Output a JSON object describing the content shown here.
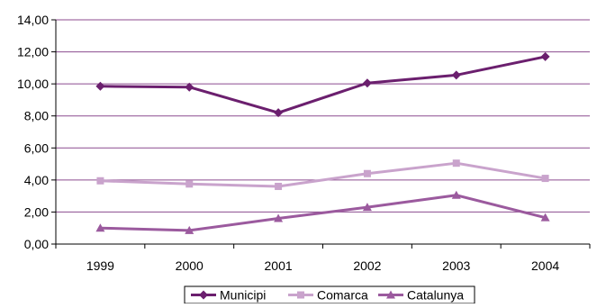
{
  "chart_data": {
    "type": "line",
    "x": [
      "1999",
      "2000",
      "2001",
      "2002",
      "2003",
      "2004"
    ],
    "y_ticks": [
      "0,00",
      "2,00",
      "4,00",
      "6,00",
      "8,00",
      "10,00",
      "12,00",
      "14,00"
    ],
    "ylim": [
      0,
      14
    ],
    "grid": true,
    "legend_position": "bottom",
    "series": [
      {
        "name": "Municipi",
        "marker": "diamond",
        "color": "#6b1f6e",
        "values": [
          9.85,
          9.8,
          8.2,
          10.05,
          10.55,
          11.7
        ]
      },
      {
        "name": "Comarca",
        "marker": "square",
        "color": "#c9a3cc",
        "values": [
          3.95,
          3.75,
          3.6,
          4.4,
          5.05,
          4.1
        ]
      },
      {
        "name": "Catalunya",
        "marker": "triangle",
        "color": "#9b5a9e",
        "values": [
          1.0,
          0.85,
          1.6,
          2.3,
          3.05,
          1.65
        ]
      }
    ]
  }
}
